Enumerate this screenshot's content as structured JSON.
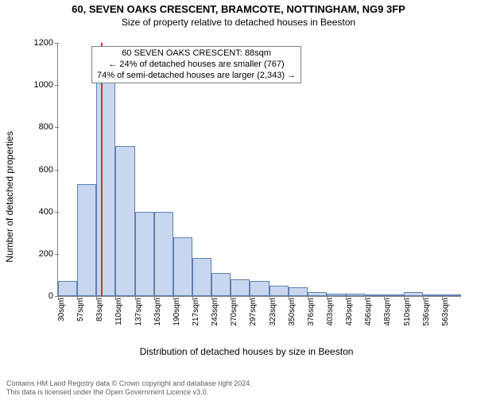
{
  "title_main": "60, SEVEN OAKS CRESCENT, BRAMCOTE, NOTTINGHAM, NG9 3FP",
  "title_sub": "Size of property relative to detached houses in Beeston",
  "ylabel": "Number of detached properties",
  "xlabel": "Distribution of detached houses by size in Beeston",
  "chart": {
    "type": "histogram",
    "ylim": [
      0,
      1200
    ],
    "ytick_step": 200,
    "yticks": [
      0,
      200,
      400,
      600,
      800,
      1000,
      1200
    ],
    "xticks": [
      "30sqm",
      "57sqm",
      "83sqm",
      "110sqm",
      "137sqm",
      "163sqm",
      "190sqm",
      "217sqm",
      "243sqm",
      "270sqm",
      "297sqm",
      "323sqm",
      "350sqm",
      "376sqm",
      "403sqm",
      "430sqm",
      "456sqm",
      "483sqm",
      "510sqm",
      "536sqm",
      "563sqm"
    ],
    "bars": [
      70,
      530,
      1060,
      710,
      400,
      400,
      280,
      180,
      110,
      80,
      70,
      50,
      40,
      20,
      10,
      10,
      5,
      5,
      20,
      5,
      5
    ],
    "bar_fill": "#c8d7ef",
    "bar_border": "#6080b0",
    "background": "#ffffff",
    "axis_color": "#808080",
    "marker": {
      "index": 2.22,
      "color": "#d83030",
      "value_sqm": 88
    }
  },
  "annotation": {
    "line1": "60 SEVEN OAKS CRESCENT: 88sqm",
    "line2": "← 24% of detached houses are smaller (767)",
    "line3": "74% of semi-detached houses are larger (2,343) →",
    "border": "#808080",
    "bg": "#ffffff",
    "fontsize": 11
  },
  "footer": {
    "line1": "Contains HM Land Registry data © Crown copyright and database right 2024.",
    "line2": "This data is licensed under the Open Government Licence v3.0."
  }
}
